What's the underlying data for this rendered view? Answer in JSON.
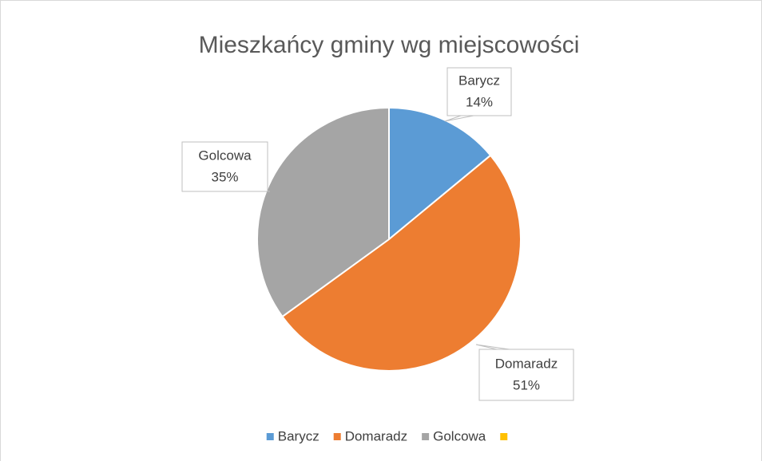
{
  "chart_data": {
    "type": "pie",
    "title": "Mieszkańcy gminy wg miejscowości",
    "categories": [
      "Barycz",
      "Domaradz",
      "Golcowa",
      null
    ],
    "values": [
      14,
      51,
      35,
      0
    ],
    "value_labels": [
      "14%",
      "51%",
      "35%",
      null
    ],
    "colors": [
      "#5b9bd5",
      "#ed7d31",
      "#a5a5a5",
      "#ffc000"
    ],
    "legend": "bottom"
  }
}
